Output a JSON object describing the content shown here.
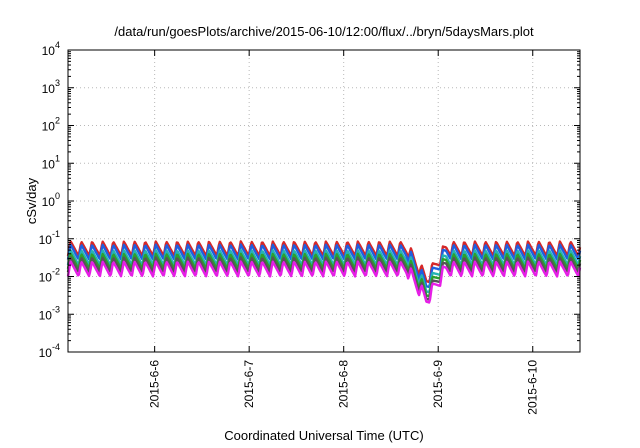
{
  "chart_data": {
    "type": "line",
    "title": "/data/run/goesPlots/archive/2015-06-10/12:00/flux/../bryn/5daysMars.plot",
    "xlabel": "Coordinated Universal Time (UTC)",
    "ylabel": "cSv/day",
    "yscale": "log",
    "ylim": [
      0.0001,
      10000
    ],
    "xlim": [
      "2015-06-05 02:00",
      "2015-06-10 12:00"
    ],
    "grid": true,
    "y_ticks": [
      {
        "base": "10",
        "exp": "-4",
        "value": 0.0001
      },
      {
        "base": "10",
        "exp": "-3",
        "value": 0.001
      },
      {
        "base": "10",
        "exp": "-2",
        "value": 0.01
      },
      {
        "base": "10",
        "exp": "-1",
        "value": 0.1
      },
      {
        "base": "10",
        "exp": "0",
        "value": 1
      },
      {
        "base": "10",
        "exp": "1",
        "value": 10
      },
      {
        "base": "10",
        "exp": "2",
        "value": 100
      },
      {
        "base": "10",
        "exp": "3",
        "value": 1000
      },
      {
        "base": "10",
        "exp": "4",
        "value": 10000
      }
    ],
    "x_ticks": [
      {
        "label": "2015-6-6",
        "value": "2015-06-06 00:00"
      },
      {
        "label": "2015-6-7",
        "value": "2015-06-07 00:00"
      },
      {
        "label": "2015-6-8",
        "value": "2015-06-08 00:00"
      },
      {
        "label": "2015-6-9",
        "value": "2015-06-09 00:00"
      },
      {
        "label": "2015-6-10",
        "value": "2015-06-10 00:00"
      }
    ],
    "series": [
      {
        "color": "#d62728",
        "level_range": [
          0.035,
          0.085
        ]
      },
      {
        "color": "#1f5fe0",
        "level_range": [
          0.028,
          0.07
        ]
      },
      {
        "color": "#26b3b3",
        "level_range": [
          0.02,
          0.05
        ]
      },
      {
        "color": "#2ca02c",
        "level_range": [
          0.016,
          0.04
        ]
      },
      {
        "color": "#555555",
        "level_range": [
          0.013,
          0.032
        ]
      },
      {
        "color": "#e61ee6",
        "level_range": [
          0.01,
          0.025
        ]
      }
    ],
    "dip": {
      "x": "2015-06-08 21:00",
      "min_value": 0.0015
    }
  }
}
